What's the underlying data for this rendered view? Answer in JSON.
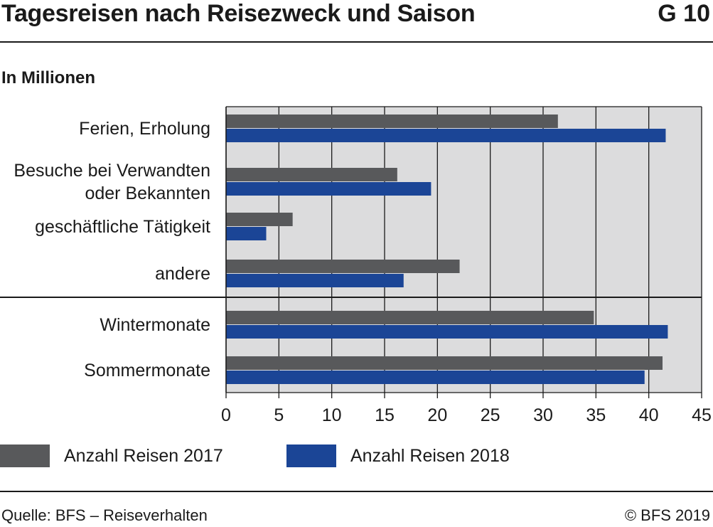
{
  "header": {
    "title": "Tagesreisen nach Reisezweck und Saison",
    "figure_id": "G 10"
  },
  "unit_label": "In Millionen",
  "colors": {
    "series_2017": "#58595b",
    "series_2018": "#1b4596",
    "plot_bg": "#dcdcdd",
    "grid": "#1a1a1a"
  },
  "chart_data": {
    "type": "bar",
    "orientation": "horizontal",
    "categories": [
      [
        "Ferien, Erholung"
      ],
      [
        "Besuche bei Verwandten",
        "oder Bekannten"
      ],
      [
        "geschäftliche Tätigkeit"
      ],
      [
        "andere"
      ],
      [
        "Wintermonate"
      ],
      [
        "Sommermonate"
      ]
    ],
    "group_separator_after_index": 3,
    "series": [
      {
        "name": "Anzahl Reisen 2017",
        "values": [
          31.4,
          16.2,
          6.3,
          22.1,
          34.8,
          41.3
        ]
      },
      {
        "name": "Anzahl Reisen 2018",
        "values": [
          41.6,
          19.4,
          3.8,
          16.8,
          41.8,
          39.6
        ]
      }
    ],
    "xlim": [
      0,
      45
    ],
    "xticks": [
      "0",
      "5",
      "10",
      "15",
      "20",
      "25",
      "30",
      "35",
      "40",
      "45"
    ],
    "grid": true,
    "legend_position": "bottom"
  },
  "legend": [
    {
      "label": "Anzahl Reisen 2017"
    },
    {
      "label": "Anzahl Reisen 2018"
    }
  ],
  "footer": {
    "source": "Quelle: BFS – Reiseverhalten",
    "copyright": "© BFS 2019"
  }
}
